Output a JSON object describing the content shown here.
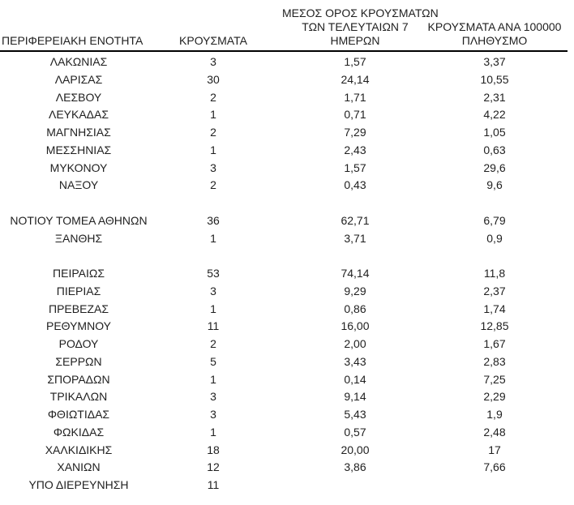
{
  "colors": {
    "background": "#ffffff",
    "text": "#1f1f1f",
    "rule": "#000000"
  },
  "table": {
    "columns": [
      {
        "key": "region",
        "label": "ΠΕΡΙΦΕΡΕΙΑΚΗ ΕΝΟΤΗΤΑ"
      },
      {
        "key": "cases",
        "label": "ΚΡΟΥΣΜΑΤΑ"
      },
      {
        "key": "avg7",
        "label": "ΜΕΣΟΣ ΟΡΟΣ ΚΡΟΥΣΜΑΤΩΝ\nΤΩΝ ΤΕΛΕΥΤΑΙΩΝ 7\nΗΜΕΡΩΝ"
      },
      {
        "key": "per100k",
        "label": "ΚΡΟΥΣΜΑΤΑ ΑΝΑ 100000\nΠΛΗΘΥΣΜΟ"
      }
    ],
    "rows": [
      [
        "ΛΑΚΩΝΙΑΣ",
        "3",
        "1,57",
        "3,37"
      ],
      [
        "ΛΑΡΙΣΑΣ",
        "30",
        "24,14",
        "10,55"
      ],
      [
        "ΛΕΣΒΟΥ",
        "2",
        "1,71",
        "2,31"
      ],
      [
        "ΛΕΥΚΑΔΑΣ",
        "1",
        "0,71",
        "4,22"
      ],
      [
        "ΜΑΓΝΗΣΙΑΣ",
        "2",
        "7,29",
        "1,05"
      ],
      [
        "ΜΕΣΣΗΝΙΑΣ",
        "1",
        "2,43",
        "0,63"
      ],
      [
        "ΜΥΚΟΝΟΥ",
        "3",
        "1,57",
        "29,6"
      ],
      [
        "ΝΑΞΟΥ",
        "2",
        "0,43",
        "9,6"
      ],
      [
        "",
        "",
        "",
        ""
      ],
      [
        "ΝΟΤΙΟΥ ΤΟΜΕΑ ΑΘΗΝΩΝ",
        "36",
        "62,71",
        "6,79"
      ],
      [
        "ΞΑΝΘΗΣ",
        "1",
        "3,71",
        "0,9"
      ],
      [
        "",
        "",
        "",
        ""
      ],
      [
        "ΠΕΙΡΑΙΩΣ",
        "53",
        "74,14",
        "11,8"
      ],
      [
        "ΠΙΕΡΙΑΣ",
        "3",
        "9,29",
        "2,37"
      ],
      [
        "ΠΡΕΒΕΖΑΣ",
        "1",
        "0,86",
        "1,74"
      ],
      [
        "ΡΕΘΥΜΝΟΥ",
        "11",
        "16,00",
        "12,85"
      ],
      [
        "ΡΟΔΟΥ",
        "2",
        "2,00",
        "1,67"
      ],
      [
        "ΣΕΡΡΩΝ",
        "5",
        "3,43",
        "2,83"
      ],
      [
        "ΣΠΟΡΑΔΩΝ",
        "1",
        "0,14",
        "7,25"
      ],
      [
        "ΤΡΙΚΑΛΩΝ",
        "3",
        "9,14",
        "2,29"
      ],
      [
        "ΦΘΙΩΤΙΔΑΣ",
        "3",
        "5,43",
        "1,9"
      ],
      [
        "ΦΩΚΙΔΑΣ",
        "1",
        "0,57",
        "2,48"
      ],
      [
        "ΧΑΛΚΙΔΙΚΗΣ",
        "18",
        "20,00",
        "17"
      ],
      [
        "ΧΑΝΙΩΝ",
        "12",
        "3,86",
        "7,66"
      ],
      [
        "ΥΠΟ ΔΙΕΡΕΥΝΗΣΗ",
        "11",
        "",
        ""
      ]
    ]
  }
}
